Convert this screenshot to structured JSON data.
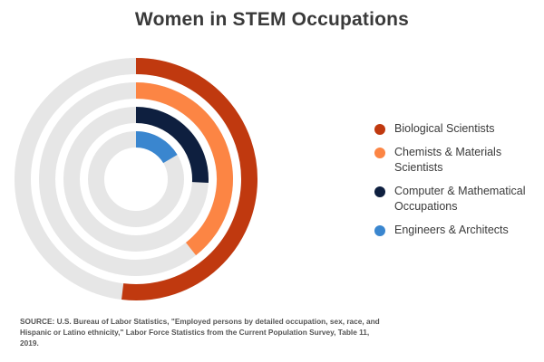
{
  "title": "Women in STEM Occupations",
  "source_note": "SOURCE: U.S. Bureau of Labor Statistics, \"Employed persons by detailed occupation, sex, race, and Hispanic or Latino ethnicity,\" Labor Force Statistics from the Current Population Survey, Table 11, 2019.",
  "colors": {
    "track": "#e6e6e6",
    "background": "#ffffff"
  },
  "chart_data": {
    "type": "radial bar",
    "unit": "percent",
    "max": 100,
    "series": [
      {
        "name": "Biological Scientists",
        "value": 51.9,
        "color": "#c0390f"
      },
      {
        "name": "Chemists & Materials Scientists",
        "value": 39.4,
        "color": "#fc8544"
      },
      {
        "name": "Computer & Mathematical Occupations",
        "value": 25.8,
        "color": "#0e1f3f"
      },
      {
        "name": "Engineers & Architects",
        "value": 16.5,
        "color": "#3a86cf"
      }
    ],
    "legend_position": "right"
  }
}
